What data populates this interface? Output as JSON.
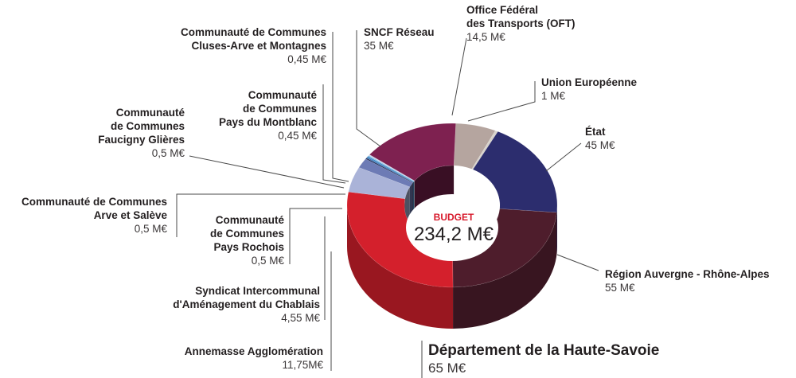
{
  "chart_data": {
    "type": "pie",
    "center_label": {
      "title": "BUDGET",
      "value": "234,2 M€"
    },
    "unit": "M€",
    "slices": [
      {
        "name": "Office Fédéral des Transports (OFT)",
        "name_lines": [
          "Office Fédéral",
          "des Transports (OFT)"
        ],
        "value": 14.5,
        "value_label": "14,5 M€",
        "color": "#b5a59f"
      },
      {
        "name": "Union Européenne",
        "name_lines": [
          "Union Européenne"
        ],
        "value": 1,
        "value_label": "1 M€",
        "color": "#d8d3cc"
      },
      {
        "name": "État",
        "name_lines": [
          "État"
        ],
        "value": 45,
        "value_label": "45 M€",
        "color": "#2c2d6e"
      },
      {
        "name": "Région Auvergne - Rhône-Alpes",
        "name_lines": [
          "Région Auvergne - Rhône-Alpes"
        ],
        "value": 55,
        "value_label": "55 M€",
        "color": "#4e1d2c"
      },
      {
        "name": "Département de la Haute-Savoie",
        "name_lines": [
          "Département de la Haute-Savoie"
        ],
        "value": 65,
        "value_label": "65 M€",
        "color": "#d4202c"
      },
      {
        "name": "Annemasse Agglomération",
        "name_lines": [
          "Annemasse Agglomération"
        ],
        "value": 11.75,
        "value_label": "11,75M€",
        "color": "#aab3d8"
      },
      {
        "name": "Syndicat Intercommunal d'Aménagement du Chablais",
        "name_lines": [
          "Syndicat Intercommunal",
          "d'Aménagement du Chablais"
        ],
        "value": 4.55,
        "value_label": "4,55 M€",
        "color": "#6d7bb5"
      },
      {
        "name": "Communauté de Communes Pays Rochois",
        "name_lines": [
          "Communauté",
          "de Communes",
          "Pays Rochois"
        ],
        "value": 0.5,
        "value_label": "0,5 M€",
        "color": "#1c2a55"
      },
      {
        "name": "Communauté de Communes Arve et Salève",
        "name_lines": [
          "Communauté de Communes",
          "Arve et Salève"
        ],
        "value": 0.5,
        "value_label": "0,5 M€",
        "color": "#3b6fb0"
      },
      {
        "name": "Communauté de Communes Faucigny Glières",
        "name_lines": [
          "Communauté",
          "de Communes",
          "Faucigny Glières"
        ],
        "value": 0.5,
        "value_label": "0,5 M€",
        "color": "#2f8ac9"
      },
      {
        "name": "Communauté de Communes Pays du Montblanc",
        "name_lines": [
          "Communauté",
          "de Communes",
          "Pays du Montblanc"
        ],
        "value": 0.45,
        "value_label": "0,45 M€",
        "color": "#8fb9e0"
      },
      {
        "name": "Communauté de Communes Cluses-Arve et Montagnes",
        "name_lines": [
          "Communauté de Communes",
          "Cluses-Arve et Montagnes"
        ],
        "value": 0.45,
        "value_label": "0,45 M€",
        "color": "#c7d8ef"
      },
      {
        "name": "SNCF Réseau",
        "name_lines": [
          "SNCF Réseau"
        ],
        "value": 35,
        "value_label": "35 M€",
        "color": "#7e2150"
      }
    ]
  }
}
